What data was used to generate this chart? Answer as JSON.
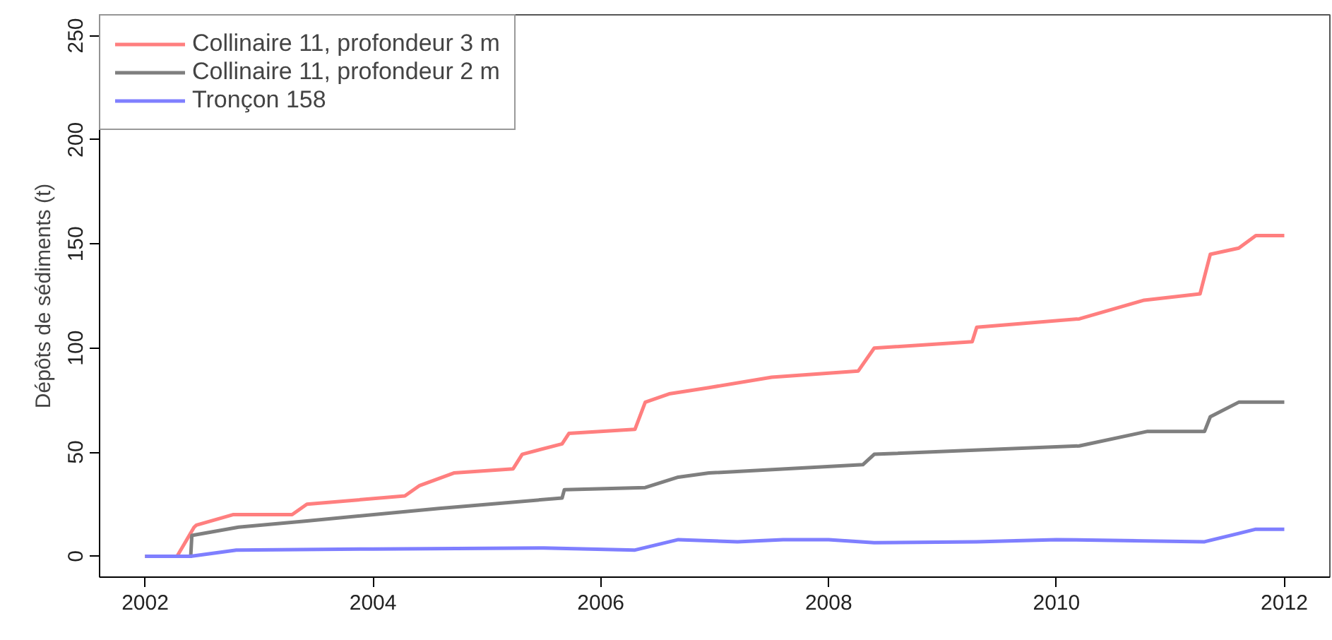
{
  "chart_data": {
    "type": "line",
    "ylabel": "Dépôts de sédiments (t)",
    "xlim": [
      2001.6,
      2012.4
    ],
    "ylim": [
      -10,
      260
    ],
    "xticks": [
      2002,
      2004,
      2006,
      2008,
      2010,
      2012
    ],
    "yticks": [
      0,
      50,
      100,
      150,
      200,
      250
    ],
    "grid": false,
    "legend": "top left",
    "line_style": "solid",
    "marker": "none",
    "series": [
      {
        "name": "Collinaire 11, profondeur 3 m",
        "color": "#ff7f7f",
        "x": [
          2002.0,
          2002.28,
          2002.43,
          2002.45,
          2002.77,
          2003.29,
          2003.42,
          2004.28,
          2004.41,
          2004.71,
          2005.23,
          2005.31,
          2005.66,
          2005.72,
          2006.3,
          2006.39,
          2006.6,
          2006.95,
          2007.5,
          2008.26,
          2008.4,
          2009.26,
          2009.3,
          2010.2,
          2010.77,
          2011.26,
          2011.35,
          2011.6,
          2011.75,
          2012.0
        ],
        "values": [
          0,
          0,
          14,
          15,
          20,
          20,
          25,
          29,
          34,
          40,
          42,
          49,
          54,
          59,
          61,
          74,
          78,
          81,
          86,
          89,
          100,
          103,
          110,
          114,
          123,
          126,
          145,
          148,
          154,
          154
        ]
      },
      {
        "name": "Collinaire 11, profondeur 2 m",
        "color": "#7f7f7f",
        "x": [
          2002.0,
          2002.4,
          2002.41,
          2002.82,
          2003.42,
          2004.58,
          2005.66,
          2005.68,
          2006.39,
          2006.68,
          2006.95,
          2008.3,
          2008.4,
          2010.2,
          2010.8,
          2011.3,
          2011.35,
          2011.6,
          2012.0
        ],
        "values": [
          0,
          0,
          10,
          14,
          17,
          23,
          28,
          32,
          33,
          38,
          40,
          44,
          49,
          53,
          60,
          60,
          67,
          74,
          74
        ]
      },
      {
        "name": "Tronçon 158",
        "color": "#7f7fff",
        "x": [
          2002.0,
          2002.4,
          2002.8,
          2004.0,
          2005.5,
          2006.3,
          2006.68,
          2007.2,
          2007.6,
          2008.0,
          2008.4,
          2009.3,
          2010.0,
          2011.3,
          2011.6,
          2011.75,
          2012.0
        ],
        "values": [
          0,
          0,
          3,
          3.5,
          4,
          3,
          8,
          7,
          8,
          8,
          6.5,
          7,
          8,
          7,
          11,
          13,
          13
        ]
      }
    ]
  }
}
